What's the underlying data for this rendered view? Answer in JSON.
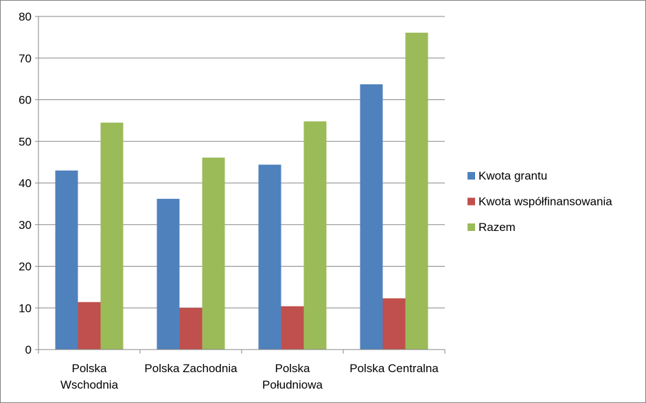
{
  "chart_data": {
    "type": "bar",
    "categories": [
      [
        "Polska",
        "Wschodnia"
      ],
      [
        "Polska Zachodnia"
      ],
      [
        "Polska",
        "Południowa"
      ],
      [
        "Polska Centralna"
      ]
    ],
    "series": [
      {
        "name": "Kwota grantu",
        "color": "#4f81bd",
        "values": [
          43,
          36.2,
          44.4,
          63.7
        ]
      },
      {
        "name": "Kwota współfinansowania",
        "color": "#c0504d",
        "values": [
          11.4,
          10,
          10.4,
          12.3
        ]
      },
      {
        "name": "Razem",
        "color": "#9bbb59",
        "values": [
          54.5,
          46.1,
          54.8,
          76.1
        ]
      }
    ],
    "ylim": [
      0,
      80
    ],
    "yticks": [
      0,
      10,
      20,
      30,
      40,
      50,
      60,
      70,
      80
    ],
    "grid": true,
    "legend": "right"
  }
}
